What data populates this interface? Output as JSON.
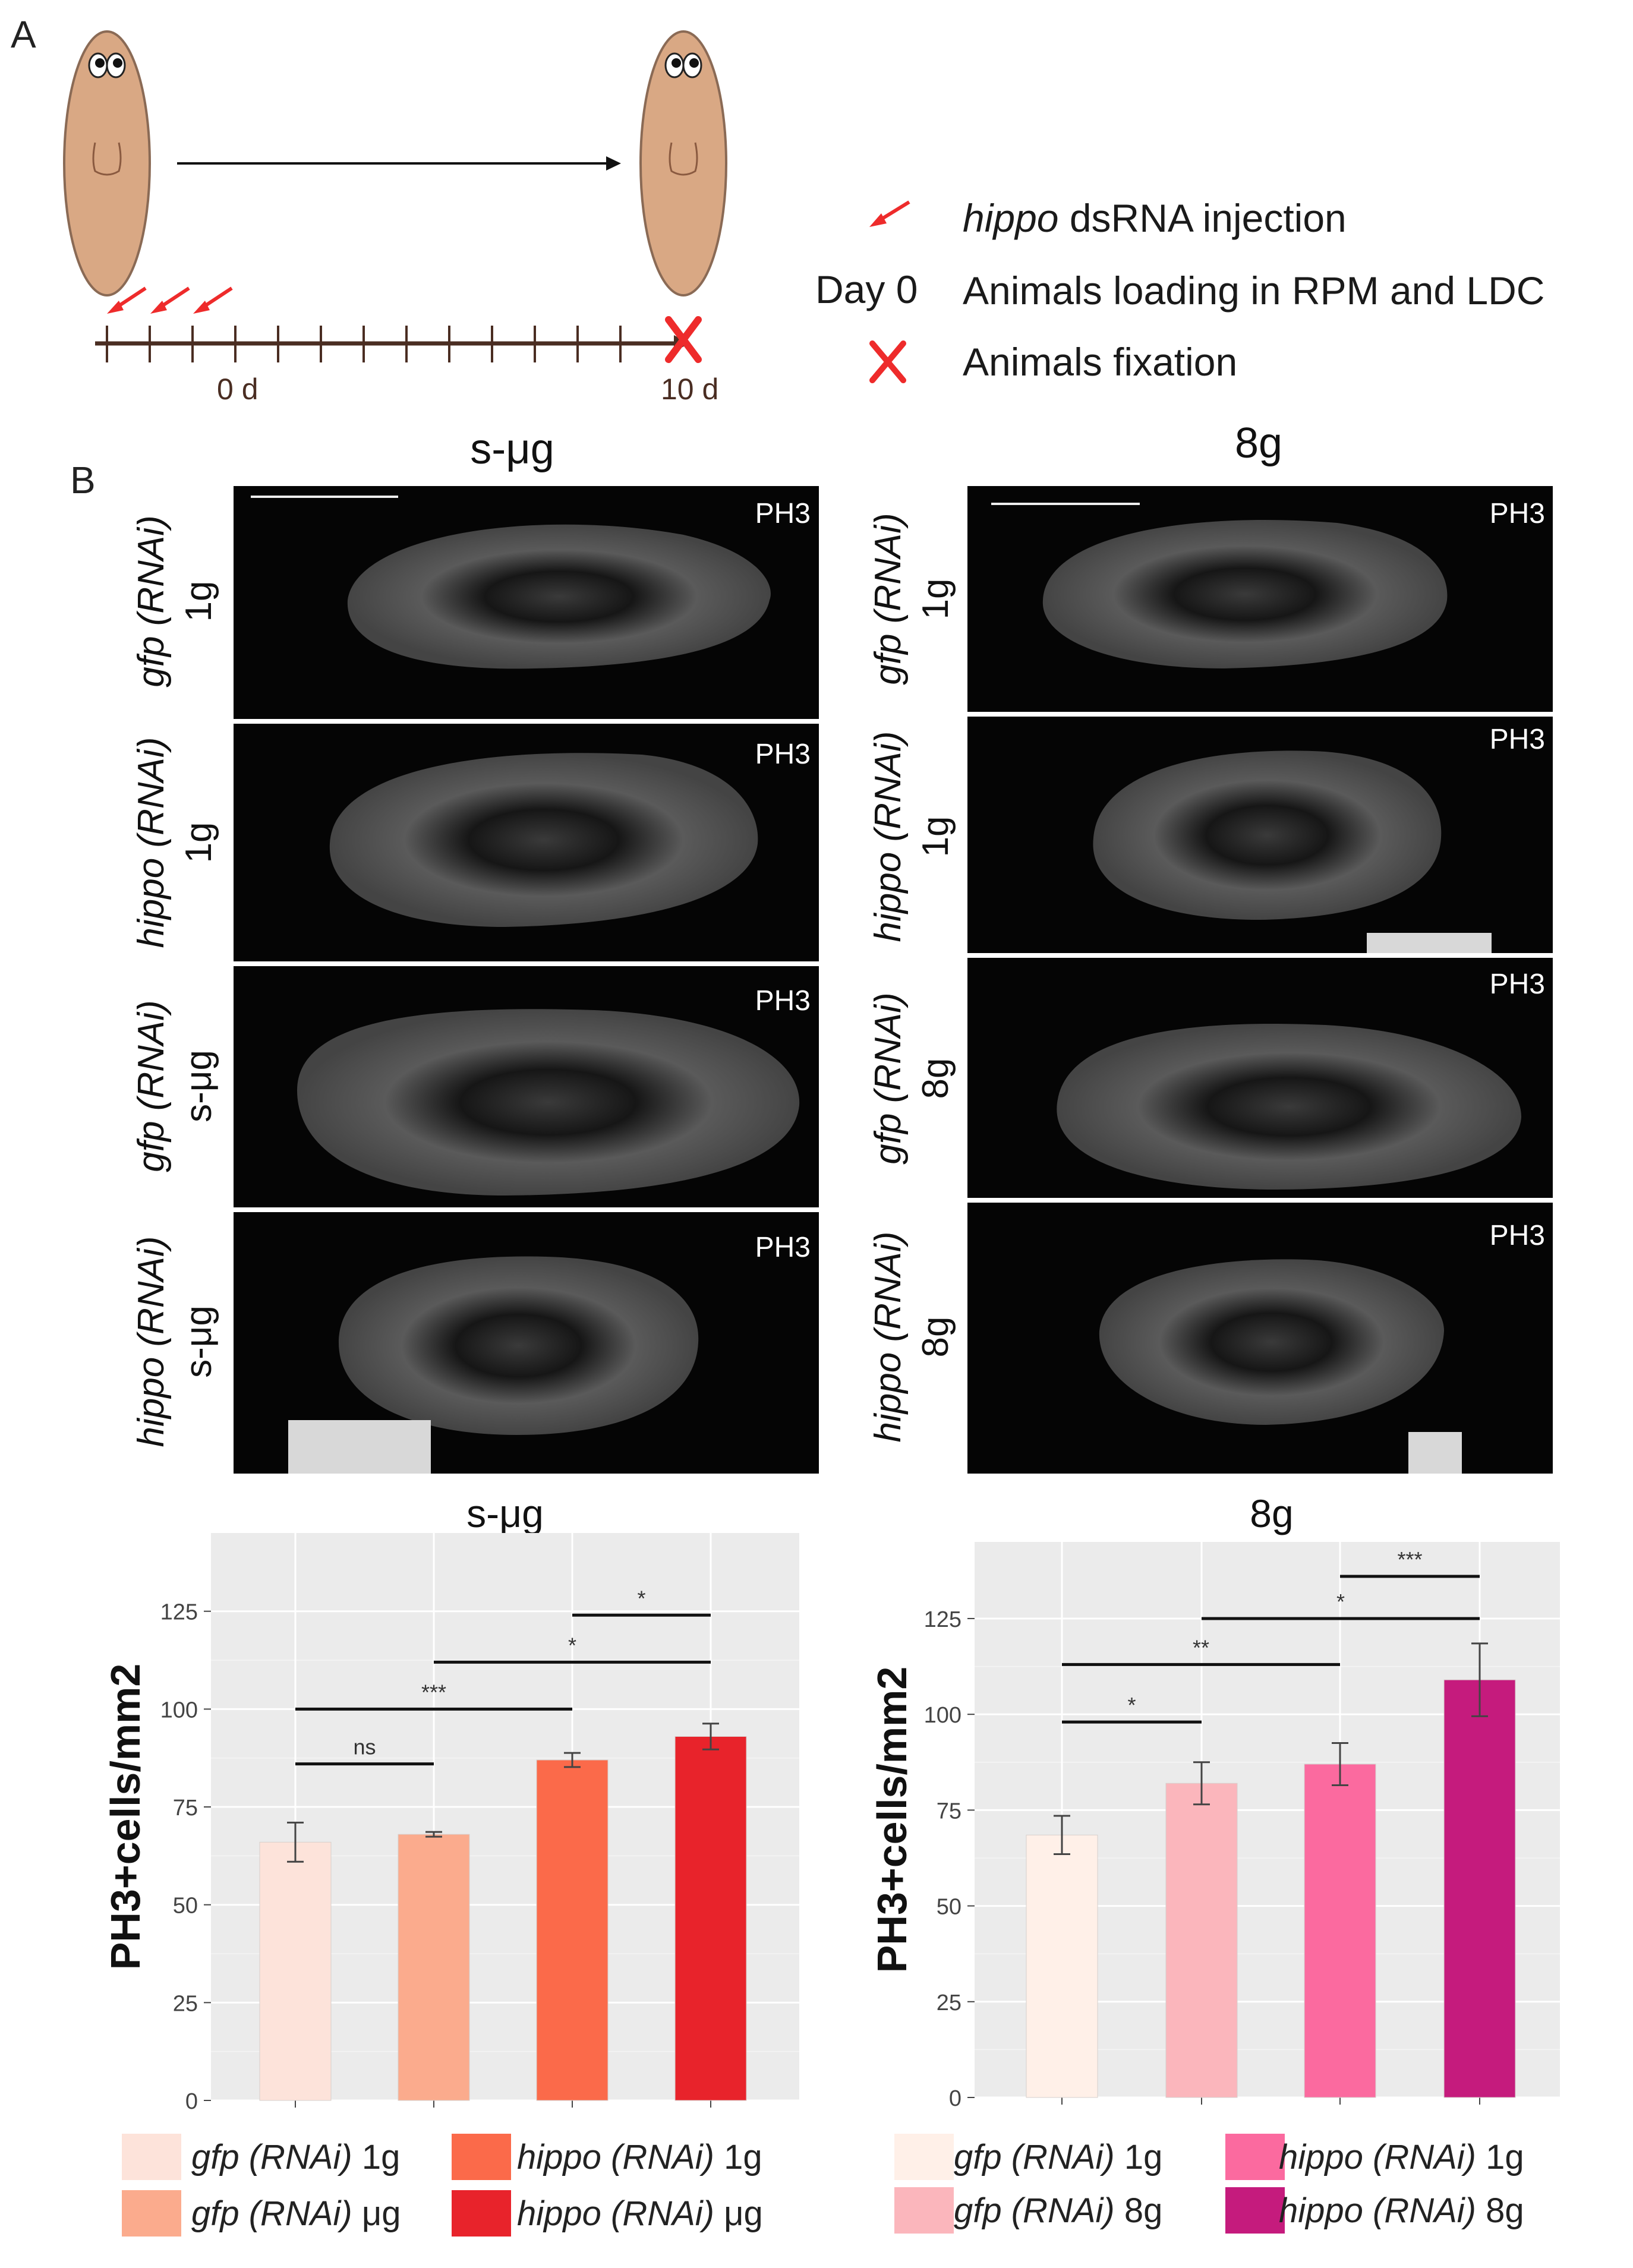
{
  "panel_a": {
    "label": "A",
    "timeline_start_label": "0 d",
    "timeline_end_label": "10 d",
    "legend": {
      "injection_italic": "hippo",
      "injection_rest": " dsRNA injection",
      "day0_key": "Day 0",
      "day0_text": "Animals loading in RPM and LDC",
      "fixation_text": "Animals fixation"
    },
    "colors": {
      "worm": "#d9a884",
      "worm_stroke": "#8a6a55",
      "timeline": "#4a2d22",
      "marker": "#ee2b2b"
    }
  },
  "panel_b": {
    "label": "B",
    "column_titles": [
      "s-μg",
      "8g"
    ],
    "stain": "PH3",
    "left_rows": [
      {
        "gene": "gfp (RNAi)",
        "condition": "1g"
      },
      {
        "gene": "hippo (RNAi)",
        "condition": "1g"
      },
      {
        "gene": "gfp (RNAi)",
        "condition": "s-μg"
      },
      {
        "gene": "hippo (RNAi)",
        "condition": "s-μg"
      }
    ],
    "right_rows": [
      {
        "gene": "gfp (RNAi)",
        "condition": "1g"
      },
      {
        "gene": "hippo (RNAi)",
        "condition": "1g"
      },
      {
        "gene": "gfp (RNAi)",
        "condition": "8g"
      },
      {
        "gene": "hippo (RNAi)",
        "condition": "8g"
      }
    ]
  },
  "chart_data": [
    {
      "type": "bar",
      "title": "s-μg",
      "ylabel": "PH3+cells/mm2",
      "xlabel": "",
      "ylim": [
        0,
        145
      ],
      "yticks": [
        0,
        25,
        50,
        75,
        100,
        125
      ],
      "categories": [
        "gfp (RNAi) 1g",
        "gfp (RNAi) μg",
        "hippo (RNAi) 1g",
        "hippo (RNAi) μg"
      ],
      "values": [
        66,
        68,
        87,
        93
      ],
      "errors": [
        5,
        0.6,
        1.8,
        3.3
      ],
      "colors": [
        "#fde3da",
        "#fbab8d",
        "#fb6a4a",
        "#e8232b"
      ],
      "grid": true,
      "significance": [
        {
          "from": 0,
          "to": 1,
          "y": 86,
          "label": "ns"
        },
        {
          "from": 0,
          "to": 2,
          "y": 100,
          "label": "***"
        },
        {
          "from": 1,
          "to": 3,
          "y": 112,
          "label": "*"
        },
        {
          "from": 2,
          "to": 3,
          "y": 124,
          "label": "*"
        }
      ],
      "legend": [
        {
          "italic": "gfp (RNAi)",
          "plain": " 1g"
        },
        {
          "italic": "hippo (RNAi)",
          "plain": " 1g"
        },
        {
          "italic": "gfp (RNAi)",
          "plain": " μg"
        },
        {
          "italic": "hippo (RNAi)",
          "plain": " μg"
        }
      ]
    },
    {
      "type": "bar",
      "title": "8g",
      "ylabel": "PH3+cells/mm2",
      "xlabel": "",
      "ylim": [
        0,
        145
      ],
      "yticks": [
        0,
        25,
        50,
        75,
        100,
        125
      ],
      "categories": [
        "gfp (RNAi) 1g",
        "gfp (RNAi) 8g",
        "hippo (RNAi) 1g",
        "hippo (RNAi) 8g"
      ],
      "values": [
        68.5,
        82,
        87,
        109
      ],
      "errors": [
        5,
        5.5,
        5.5,
        9.5
      ],
      "colors": [
        "#fff0e8",
        "#fbb6bc",
        "#fb6a9f",
        "#c51b7d"
      ],
      "grid": true,
      "significance": [
        {
          "from": 0,
          "to": 1,
          "y": 98,
          "label": "*"
        },
        {
          "from": 0,
          "to": 2,
          "y": 113,
          "label": "**"
        },
        {
          "from": 1,
          "to": 3,
          "y": 125,
          "label": "*"
        },
        {
          "from": 2,
          "to": 3,
          "y": 136,
          "label": "***"
        }
      ],
      "legend": [
        {
          "italic": "gfp (RNAi)",
          "plain": " 1g"
        },
        {
          "italic": "hippo (RNAi)",
          "plain": " 1g"
        },
        {
          "italic": "gfp (RNAi)",
          "plain": " 8g"
        },
        {
          "italic": "hippo (RNAi)",
          "plain": " 8g"
        }
      ]
    }
  ]
}
